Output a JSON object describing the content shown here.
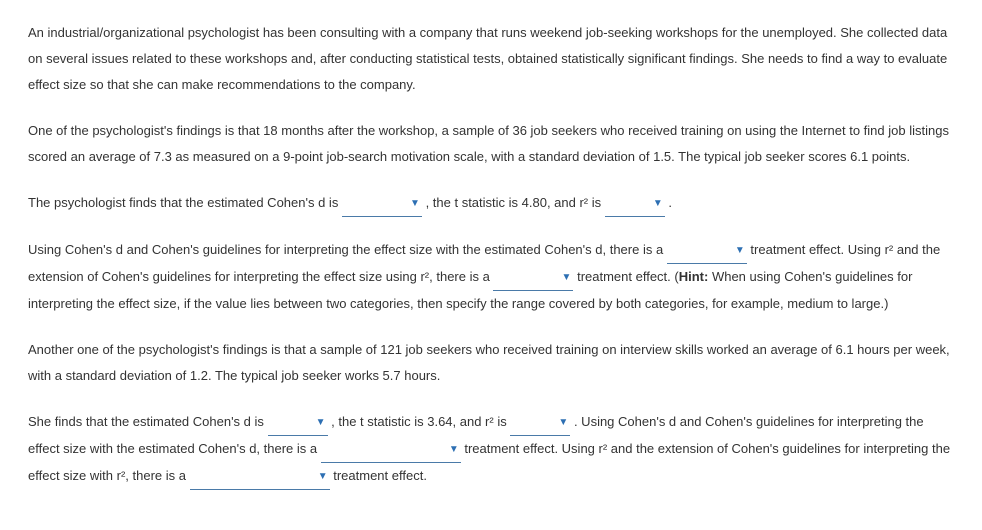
{
  "paragraphs": {
    "intro1": "An industrial/organizational psychologist has been consulting with a company that runs weekend job-seeking workshops for the unemployed. She collected data on several issues related to these workshops and, after conducting statistical tests, obtained statistically significant findings. She needs to find a way to evaluate effect size so that she can make recommendations to the company.",
    "intro2": "One of the psychologist's findings is that 18 months after the workshop, a sample of 36 job seekers who received training on using the Internet to find job listings scored an average of 7.3 as measured on a 9-point job-search motivation scale, with a standard deviation of 1.5. The typical job seeker scores 6.1 points.",
    "q1_part1": "The psychologist finds that the estimated Cohen's d is ",
    "q1_part2": " , the t statistic is 4.80, and r² is ",
    "q1_part3": " .",
    "q2_part1": "Using Cohen's d and Cohen's guidelines for interpreting the effect size with the estimated Cohen's d, there is a ",
    "q2_part2": " treatment effect. Using r² and the extension of Cohen's guidelines for interpreting the effect size using r², there is a ",
    "q2_part3": " treatment effect. (",
    "q2_hint_label": "Hint:",
    "q2_part4": " When using Cohen's guidelines for interpreting the effect size, if the value lies between two categories, then specify the range covered by both categories, for example, medium to large.)",
    "intro3": "Another one of the psychologist's findings is that a sample of 121 job seekers who received training on interview skills worked an average of 6.1 hours per week, with a standard deviation of 1.2. The typical job seeker works 5.7 hours.",
    "q3_part1": "She finds that the estimated Cohen's d is ",
    "q3_part2": " , the t statistic is 3.64, and r² is ",
    "q3_part3": " . Using Cohen's d and Cohen's guidelines for interpreting the effect size with the estimated Cohen's d, there is a ",
    "q3_part4": " treatment effect. Using r² and the extension of Cohen's guidelines for interpreting the effect size with r², there is a ",
    "q3_part5": " treatment effect."
  }
}
